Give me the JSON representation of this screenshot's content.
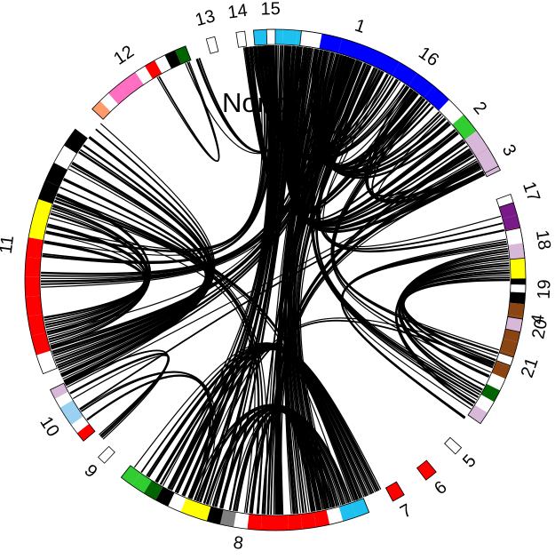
{
  "title": "Nonb",
  "chromosomes": [
    {
      "label": "1",
      "start": 355,
      "end": 402,
      "colors": [
        "#1ec0f0",
        "#1ec0f0",
        "#1ec0f0",
        "#1ec0f0",
        "#ffffff",
        "#ff9a6a",
        "#ffffff",
        "#7a1a8a",
        "#7a1a8a",
        "#ff6ec0",
        "#ffffff",
        "#ffff00",
        "#000000",
        "#ffffff"
      ]
    },
    {
      "label": "2",
      "start": 409,
      "end": 411,
      "colors": [
        "#ffffff"
      ]
    },
    {
      "label": "3",
      "start": 418,
      "end": 424,
      "colors": [
        "#ff0000",
        "#ffffff",
        "#d8b8d8"
      ]
    },
    {
      "label": "4",
      "start": 432,
      "end": 485,
      "colors": [
        "#7a1a8a",
        "#7a1a8a",
        "#ff0000",
        "#ffffff",
        "#ffff00",
        "#ffff00",
        "#000000",
        "#000000",
        "#8b4513",
        "#8b4513",
        "#8b4513",
        "#8b4513",
        "#8b4513",
        "#8b4513",
        "#ffffff",
        "#006400",
        "#ffffff",
        "#d8b8d8"
      ]
    },
    {
      "label": "5",
      "start": 492,
      "end": 494,
      "colors": [
        "#ffffff"
      ]
    },
    {
      "label": "6",
      "start": 500,
      "end": 503,
      "colors": [
        "#ff0000"
      ]
    },
    {
      "label": "7",
      "start": 509,
      "end": 512,
      "colors": [
        "#ff0000"
      ]
    },
    {
      "label": "8",
      "start": 518,
      "end": 578,
      "colors": [
        "#1ec0f0",
        "#1ec0f0",
        "#ffffff",
        "#ff0000",
        "#ff0000",
        "#ff0000",
        "#ff0000",
        "#ff0000",
        "#ff0000",
        "#ffffff",
        "#808080",
        "#000000",
        "#ffff00",
        "#ffff00",
        "#ffffff",
        "#000000",
        "#006400",
        "#32cd32",
        "#32cd32"
      ]
    },
    {
      "label": "9",
      "start": 583,
      "end": 585,
      "colors": [
        "#ffffff"
      ]
    },
    {
      "label": "10",
      "start": 590,
      "end": 604,
      "colors": [
        "#ff0000",
        "#ffffff",
        "#9ad0f0",
        "#9ad0f0",
        "#ffffff",
        "#d8b8d8"
      ]
    },
    {
      "label": "11",
      "start": 608,
      "end": 667,
      "colors": [
        "#ffffff",
        "#ff0000",
        "#ff0000",
        "#ff0000",
        "#ff0000",
        "#ff0000",
        "#ff0000",
        "#ffff00",
        "#ffff00",
        "#000000",
        "#000000",
        "#ffffff",
        "#000000"
      ]
    },
    {
      "label": "12",
      "start": 673,
      "end": 699,
      "colors": [
        "#ff9a6a",
        "#ffffff",
        "#ff6ec0",
        "#ff6ec0",
        "#ff6ec0",
        "#ffffff",
        "#ff0000",
        "#ffffff",
        "#000000",
        "#006400"
      ]
    },
    {
      "label": "13",
      "start": 704,
      "end": 706,
      "colors": [
        "#ffffff"
      ]
    },
    {
      "label": "14",
      "start": 711,
      "end": 713,
      "colors": [
        "#ffffff"
      ]
    },
    {
      "label": "15",
      "start": 718,
      "end": 720,
      "colors": [
        "#ffffff"
      ]
    },
    {
      "label": "16",
      "start": 726,
      "end": 783,
      "colors": [
        "#ffffff",
        "#0000ff",
        "#0000ff",
        "#0000ff",
        "#0000ff",
        "#0000ff",
        "#0000ff",
        "#0000ff",
        "#ffffff",
        "#32cd32",
        "#d8b8d8",
        "#d8b8d8"
      ]
    },
    {
      "label": "17",
      "start": 790,
      "end": 792,
      "colors": [
        "#ffffff"
      ]
    },
    {
      "label": "18",
      "start": 798,
      "end": 805,
      "colors": [
        "#ffffff",
        "#d8b8d8"
      ]
    },
    {
      "label": "19",
      "start": 811,
      "end": 813,
      "colors": [
        "#ffffff"
      ]
    },
    {
      "label": "20",
      "start": 819,
      "end": 822,
      "colors": [
        "#d8b8d8"
      ]
    },
    {
      "label": "21",
      "start": 828,
      "end": 830,
      "colors": [
        "#ffffff"
      ]
    }
  ],
  "links": [
    {
      "a": 356,
      "b": 392,
      "count": 22,
      "spread": 30
    },
    {
      "a": 362,
      "b": 560,
      "count": 18,
      "spread": 34
    },
    {
      "a": 372,
      "b": 538,
      "count": 8,
      "spread": 16
    },
    {
      "a": 380,
      "b": 610,
      "count": 8,
      "spread": 30
    },
    {
      "a": 358,
      "b": 640,
      "count": 6,
      "spread": 18
    },
    {
      "a": 368,
      "b": 700,
      "count": 4,
      "spread": 8
    },
    {
      "a": 365,
      "b": 770,
      "count": 6,
      "spread": 20
    },
    {
      "a": 396,
      "b": 420,
      "count": 3,
      "spread": 4
    },
    {
      "a": 420,
      "b": 760,
      "count": 3,
      "spread": 20
    },
    {
      "a": 422,
      "b": 600,
      "count": 2,
      "spread": 10
    },
    {
      "a": 436,
      "b": 745,
      "count": 3,
      "spread": 14
    },
    {
      "a": 445,
      "b": 478,
      "count": 18,
      "spread": 40
    },
    {
      "a": 470,
      "b": 560,
      "count": 2,
      "spread": 8
    },
    {
      "a": 480,
      "b": 740,
      "count": 5,
      "spread": 12
    },
    {
      "a": 522,
      "b": 560,
      "count": 36,
      "spread": 70
    },
    {
      "a": 530,
      "b": 740,
      "count": 14,
      "spread": 36
    },
    {
      "a": 540,
      "b": 780,
      "count": 6,
      "spread": 14
    },
    {
      "a": 545,
      "b": 650,
      "count": 4,
      "spread": 20
    },
    {
      "a": 560,
      "b": 595,
      "count": 3,
      "spread": 10
    },
    {
      "a": 588,
      "b": 602,
      "count": 4,
      "spread": 6
    },
    {
      "a": 612,
      "b": 655,
      "count": 30,
      "spread": 70
    },
    {
      "a": 630,
      "b": 740,
      "count": 6,
      "spread": 14
    },
    {
      "a": 650,
      "b": 520,
      "count": 4,
      "spread": 10
    },
    {
      "a": 690,
      "b": 699,
      "count": 2,
      "spread": 2
    },
    {
      "a": 730,
      "b": 770,
      "count": 34,
      "spread": 60
    },
    {
      "a": 740,
      "b": 540,
      "count": 8,
      "spread": 20
    },
    {
      "a": 760,
      "b": 470,
      "count": 4,
      "spread": 10
    }
  ]
}
